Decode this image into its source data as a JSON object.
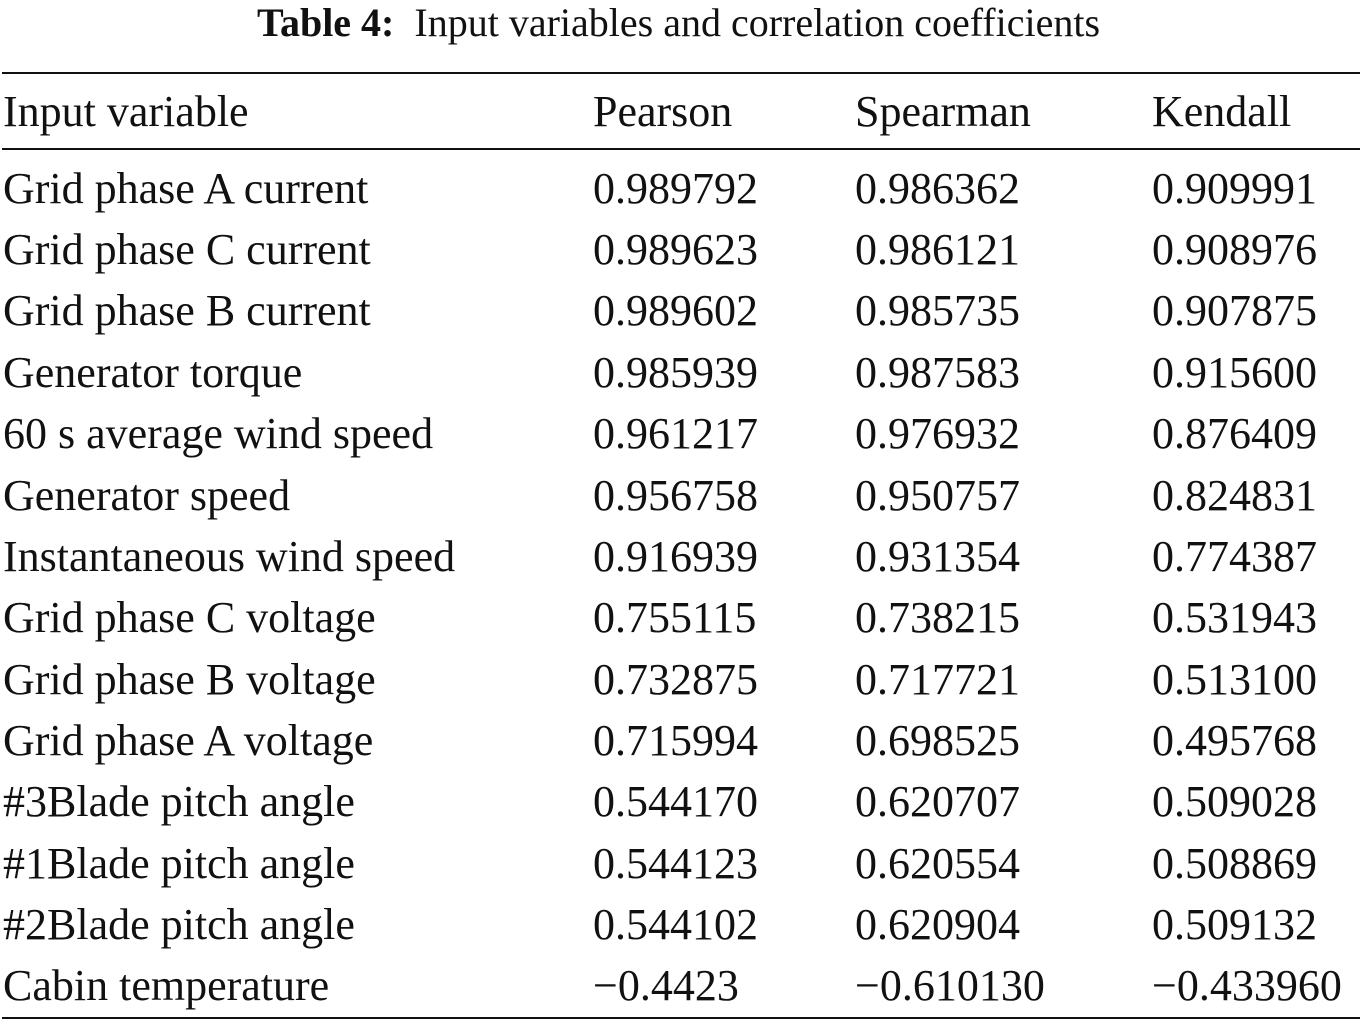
{
  "caption": {
    "label": "Table 4:",
    "text": "Input variables and correlation coefficients"
  },
  "table": {
    "headers": [
      "Input variable",
      "Pearson",
      "Spearman",
      "Kendall"
    ],
    "rows": [
      [
        "Grid phase A current",
        "0.989792",
        "0.986362",
        "0.909991"
      ],
      [
        "Grid phase C current",
        "0.989623",
        "0.986121",
        "0.908976"
      ],
      [
        "Grid phase B current",
        "0.989602",
        "0.985735",
        "0.907875"
      ],
      [
        "Generator torque",
        "0.985939",
        "0.987583",
        "0.915600"
      ],
      [
        "60 s average wind speed",
        "0.961217",
        "0.976932",
        "0.876409"
      ],
      [
        "Generator speed",
        "0.956758",
        "0.950757",
        "0.824831"
      ],
      [
        "Instantaneous wind speed",
        "0.916939",
        "0.931354",
        "0.774387"
      ],
      [
        "Grid phase C voltage",
        "0.755115",
        "0.738215",
        "0.531943"
      ],
      [
        "Grid phase B voltage",
        "0.732875",
        "0.717721",
        "0.513100"
      ],
      [
        "Grid phase A voltage",
        "0.715994",
        "0.698525",
        "0.495768"
      ],
      [
        "#3Blade pitch angle",
        "0.544170",
        "0.620707",
        "0.509028"
      ],
      [
        "#1Blade pitch angle",
        "0.544123",
        "0.620554",
        "0.508869"
      ],
      [
        "#2Blade pitch angle",
        "0.544102",
        "0.620904",
        "0.509132"
      ],
      [
        "Cabin temperature",
        "−0.4423",
        "−0.610130",
        "−0.433960"
      ]
    ]
  }
}
